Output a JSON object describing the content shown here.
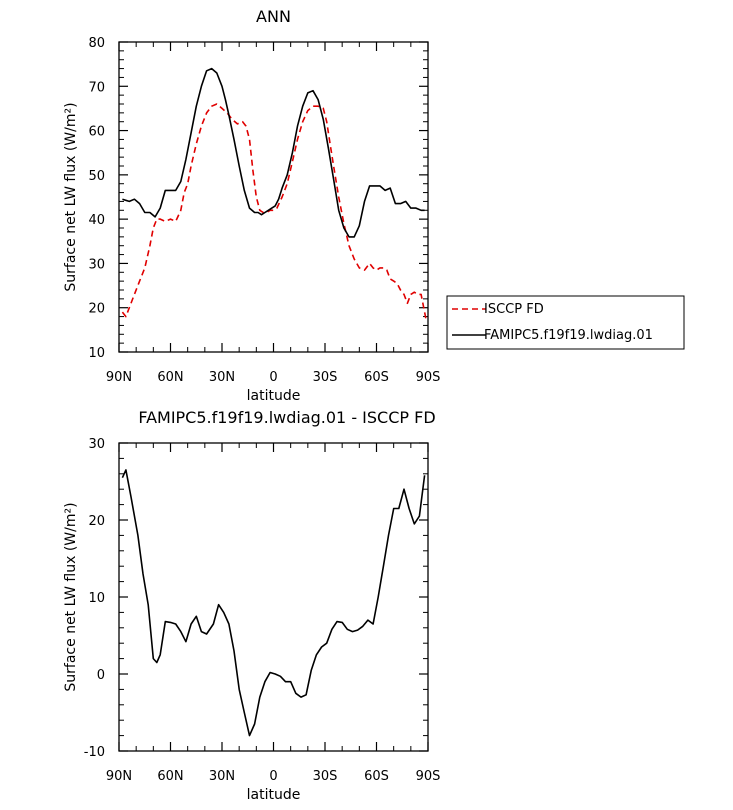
{
  "chart_data": [
    {
      "type": "line",
      "title": "ANN",
      "xlabel": "latitude",
      "ylabel": "Surface net LW flux (W/m²)",
      "xlim": [
        -90,
        90
      ],
      "ylim": [
        10,
        80
      ],
      "xticks": [
        -90,
        -60,
        -30,
        0,
        30,
        60,
        90
      ],
      "xtick_labels": [
        "90N",
        "60N",
        "30N",
        "0",
        "30S",
        "60S",
        "90S"
      ],
      "yticks": [
        10,
        20,
        30,
        40,
        50,
        60,
        70,
        80
      ],
      "ytick_labels": [
        "10",
        "20",
        "30",
        "40",
        "50",
        "60",
        "70",
        "80"
      ],
      "legend_placement": "right",
      "series": [
        {
          "name": "ISCCP FD",
          "color": "#e00000",
          "dashed": true,
          "x": [
            -88,
            -86,
            -84,
            -81,
            -78,
            -75,
            -72,
            -70,
            -68,
            -66,
            -63,
            -60,
            -57,
            -54,
            -52,
            -50,
            -48,
            -45,
            -42,
            -39,
            -36,
            -33,
            -30,
            -27,
            -24,
            -21,
            -18,
            -16,
            -14,
            -12,
            -10,
            -8,
            -6,
            -4,
            -2,
            0,
            2,
            5,
            8,
            11,
            14,
            17,
            20,
            23,
            26,
            29,
            31,
            33,
            35,
            38,
            41,
            44,
            47,
            50,
            53,
            56,
            58,
            60,
            62,
            64,
            66,
            68,
            70,
            72,
            74,
            76,
            78,
            80,
            82,
            84,
            86,
            88,
            89
          ],
          "y": [
            19,
            18,
            20,
            23,
            26,
            29,
            34,
            38,
            40,
            40,
            39.5,
            40,
            39.5,
            42,
            46,
            48,
            52,
            57,
            61,
            64,
            65.5,
            66,
            65,
            64,
            62.5,
            61.5,
            62,
            61,
            58,
            51,
            45,
            42,
            41.5,
            41.5,
            42,
            42,
            42.5,
            45,
            48,
            53,
            58,
            62,
            64.5,
            65.5,
            65.5,
            65,
            62,
            57,
            52,
            45,
            39,
            34,
            31,
            29,
            28.5,
            30,
            29,
            28.5,
            29,
            29,
            28.5,
            26.5,
            26,
            25.5,
            24,
            23,
            21,
            23,
            23.5,
            23,
            23,
            19,
            17
          ]
        },
        {
          "name": "FAMIPC5.f19f19.lwdiag.01",
          "color": "#000000",
          "dashed": false,
          "x": [
            -88,
            -84,
            -81,
            -78,
            -75,
            -72,
            -69,
            -66,
            -63,
            -60,
            -57,
            -54,
            -51,
            -48,
            -45,
            -42,
            -39,
            -36,
            -33,
            -30,
            -28,
            -26,
            -23,
            -20,
            -17,
            -14,
            -11,
            -9,
            -7,
            -5,
            -3,
            -1,
            1,
            3,
            5,
            8,
            11,
            14,
            17,
            20,
            23,
            26,
            29,
            32,
            35,
            38,
            41,
            44,
            47,
            50,
            53,
            56,
            59,
            62,
            65,
            68,
            71,
            74,
            77,
            80,
            83,
            86,
            88
          ],
          "y": [
            44.5,
            44,
            44.5,
            43.5,
            41.5,
            41.5,
            40.5,
            42.5,
            46.5,
            46.5,
            46.5,
            48.5,
            53.5,
            59.5,
            65.5,
            70,
            73.5,
            74,
            73,
            70,
            67,
            63.5,
            58,
            52,
            46.5,
            42.5,
            41.5,
            41.5,
            41,
            41.5,
            42,
            42.5,
            43,
            44.5,
            47,
            50,
            55,
            61,
            65.5,
            68.5,
            69,
            67,
            62.5,
            56,
            49,
            42,
            38,
            36,
            36,
            38.5,
            44,
            47.5,
            47.5,
            47.5,
            46.5,
            47,
            43.5,
            43.5,
            44,
            42.5,
            42.5,
            42,
            42
          ]
        }
      ]
    },
    {
      "type": "line",
      "title": "FAMIPC5.f19f19.lwdiag.01 - ISCCP FD",
      "xlabel": "latitude",
      "ylabel": "Surface net LW flux (W/m²)",
      "xlim": [
        -90,
        90
      ],
      "ylim": [
        -10,
        30
      ],
      "xticks": [
        -90,
        -60,
        -30,
        0,
        30,
        60,
        90
      ],
      "xtick_labels": [
        "90N",
        "60N",
        "30N",
        "0",
        "30S",
        "60S",
        "90S"
      ],
      "yticks": [
        -10,
        0,
        10,
        20,
        30
      ],
      "ytick_labels": [
        "-10",
        "0",
        "10",
        "20",
        "30"
      ],
      "series": [
        {
          "color": "#000000",
          "dashed": false,
          "x": [
            -88,
            -86,
            -83,
            -79,
            -76,
            -73,
            -70,
            -68,
            -66,
            -63,
            -60,
            -57,
            -54,
            -51,
            -48,
            -45,
            -42,
            -39,
            -35,
            -32,
            -29,
            -26,
            -23,
            -20,
            -17,
            -14,
            -11,
            -8,
            -5,
            -2,
            1,
            4,
            7,
            10,
            13,
            16,
            19,
            22,
            25,
            28,
            31,
            34,
            37,
            40,
            43,
            46,
            49,
            52,
            55,
            58,
            61,
            64,
            67,
            70,
            73,
            76,
            79,
            82,
            85,
            88
          ],
          "y": [
            25.5,
            26.5,
            23,
            18,
            13,
            9,
            2,
            1.5,
            2.5,
            6.8,
            6.7,
            6.5,
            5.5,
            4.2,
            6.5,
            7.5,
            5.5,
            5.2,
            6.5,
            9,
            8,
            6.5,
            3,
            -2,
            -5,
            -8,
            -6.5,
            -3,
            -1,
            0.2,
            0,
            -0.3,
            -1,
            -1,
            -2.5,
            -3,
            -2.7,
            0.5,
            2.5,
            3.5,
            4,
            5.8,
            6.8,
            6.7,
            5.8,
            5.5,
            5.7,
            6.2,
            7,
            6.5,
            10,
            14,
            18,
            21.5,
            21.5,
            24,
            21.5,
            19.5,
            20.5,
            25.8
          ]
        }
      ]
    }
  ]
}
